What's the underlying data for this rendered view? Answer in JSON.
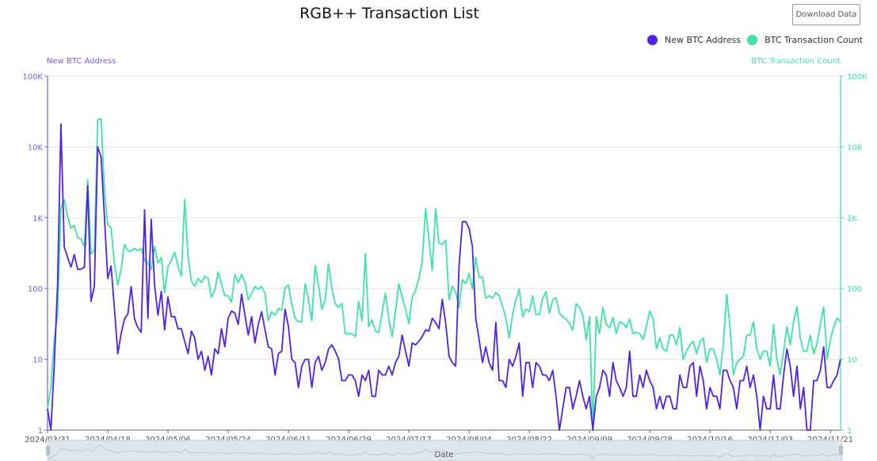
{
  "header": {
    "title": "RGB++ Transaction List",
    "download_label": "Download Data"
  },
  "colors": {
    "new_btc_address": "#4f22e6",
    "btc_transaction_count": "#3ee3a4",
    "left_axis": "#7b5cf0",
    "grid": "#e0e0e0"
  },
  "slider": {
    "label": "Date"
  },
  "chart_data": {
    "type": "line",
    "title": "RGB++ Transaction List",
    "xlabel": "Date",
    "x_tick_labels": [
      "2024/03/31",
      "2024/04/18",
      "2024/05/06",
      "2024/05/24",
      "2024/06/11",
      "2024/06/29",
      "2024/07/17",
      "2024/08/04",
      "2024/08/22",
      "2024/09/09",
      "2024/09/28",
      "2024/10/16",
      "2024/11/03",
      "2024/11/21"
    ],
    "y_scale": "log",
    "ylim": [
      1,
      100000
    ],
    "y_tick_labels": [
      "1",
      "10",
      "100",
      "1K",
      "10K",
      "100K"
    ],
    "y_left_label": "New BTC Address",
    "y_right_label": "BTC Transaction Count",
    "grid": true,
    "legend": "top-right",
    "series": [
      {
        "name": "New BTC Address",
        "axis": "left",
        "values": [
          2,
          1,
          8,
          117,
          21000,
          385,
          275,
          200,
          300,
          187,
          187,
          200,
          2800,
          66,
          107,
          10000,
          7200,
          1050,
          138,
          208,
          51,
          12,
          23,
          37,
          44,
          107,
          37,
          28,
          24,
          1290,
          38,
          950,
          112,
          42,
          91,
          26,
          76,
          40,
          40,
          27,
          27,
          18,
          12,
          25,
          20,
          10,
          13,
          7,
          11,
          6,
          14,
          12,
          27,
          15,
          38,
          48,
          45,
          31,
          83,
          42,
          22,
          40,
          17,
          31,
          47,
          26,
          15,
          14,
          6,
          12,
          13,
          51,
          29,
          10,
          9,
          4,
          8,
          10,
          10,
          4,
          9,
          11,
          7,
          9,
          14,
          16,
          13,
          10,
          5,
          5,
          6,
          6,
          5,
          3,
          6,
          5,
          7,
          3,
          3,
          7,
          6,
          6,
          8,
          6,
          9,
          11,
          22,
          13,
          8,
          17,
          16,
          18,
          21,
          26,
          25,
          38,
          33,
          27,
          70,
          33,
          11,
          9,
          8,
          204,
          880,
          880,
          710,
          390,
          38,
          19,
          9,
          15,
          9,
          7,
          33,
          5,
          5,
          4,
          10,
          8,
          11,
          17,
          3,
          9,
          9,
          4,
          9,
          8,
          6,
          6,
          5,
          7,
          3,
          1,
          2,
          4,
          4,
          2,
          3,
          5,
          3,
          2,
          3,
          1,
          3,
          4,
          7,
          6,
          3,
          9,
          5,
          4,
          3,
          4,
          13,
          3,
          3,
          6,
          4,
          7,
          5,
          4,
          2,
          3,
          2,
          3,
          3,
          2,
          2,
          6,
          4,
          4,
          8,
          9,
          3,
          8,
          5,
          2,
          4,
          3,
          3,
          2,
          7,
          7,
          5,
          4,
          2,
          5,
          5,
          8,
          4,
          6,
          3,
          1,
          3,
          2,
          2,
          6,
          2,
          2,
          6,
          14,
          8,
          3,
          8,
          2,
          4,
          1,
          1,
          5,
          5,
          7,
          15,
          4,
          4,
          5,
          6,
          10
        ]
      },
      {
        "name": "BTC Transaction Count",
        "axis": "right",
        "values": [
          2,
          4,
          18,
          43,
          1400,
          1800,
          1040,
          710,
          770,
          520,
          500,
          390,
          3450,
          310,
          340,
          24000,
          25000,
          2450,
          800,
          710,
          222,
          112,
          187,
          420,
          340,
          340,
          370,
          340,
          370,
          252,
          230,
          187,
          390,
          230,
          275,
          87,
          204,
          252,
          325,
          204,
          150,
          1800,
          275,
          126,
          107,
          138,
          121,
          150,
          138,
          76,
          94,
          171,
          117,
          79,
          79,
          64,
          158,
          121,
          158,
          121,
          69,
          86,
          107,
          98,
          107,
          86,
          35,
          47,
          42,
          52,
          49,
          102,
          112,
          59,
          38,
          34,
          34,
          117,
          69,
          35,
          212,
          112,
          51,
          69,
          223,
          98,
          61,
          54,
          62,
          23,
          23,
          23,
          21,
          66,
          35,
          311,
          29,
          36,
          25,
          24,
          45,
          86,
          38,
          21,
          47,
          117,
          76,
          51,
          32,
          76,
          94,
          138,
          241,
          1340,
          500,
          179,
          1340,
          440,
          420,
          480,
          69,
          107,
          90,
          54,
          133,
          117,
          164,
          98,
          275,
          145,
          145,
          73,
          79,
          73,
          88,
          79,
          56,
          38,
          20,
          43,
          69,
          98,
          40,
          51,
          47,
          78,
          43,
          43,
          73,
          90,
          45,
          69,
          74,
          45,
          40,
          37,
          32,
          26,
          61,
          54,
          42,
          19,
          40,
          1,
          40,
          23,
          54,
          31,
          28,
          39,
          23,
          34,
          32,
          28,
          37,
          23,
          24,
          23,
          19,
          29,
          48,
          38,
          14,
          20,
          14,
          13,
          22,
          22,
          16,
          28,
          10,
          13,
          16,
          18,
          12,
          18,
          20,
          9,
          14,
          14,
          10,
          6,
          16,
          83,
          28,
          6,
          9,
          10,
          11,
          22,
          22,
          34,
          14,
          10,
          13,
          13,
          8,
          31,
          10,
          6,
          13,
          29,
          16,
          34,
          55,
          20,
          13,
          13,
          22,
          12,
          17,
          31,
          55,
          10,
          19,
          29,
          38,
          34
        ]
      }
    ]
  }
}
